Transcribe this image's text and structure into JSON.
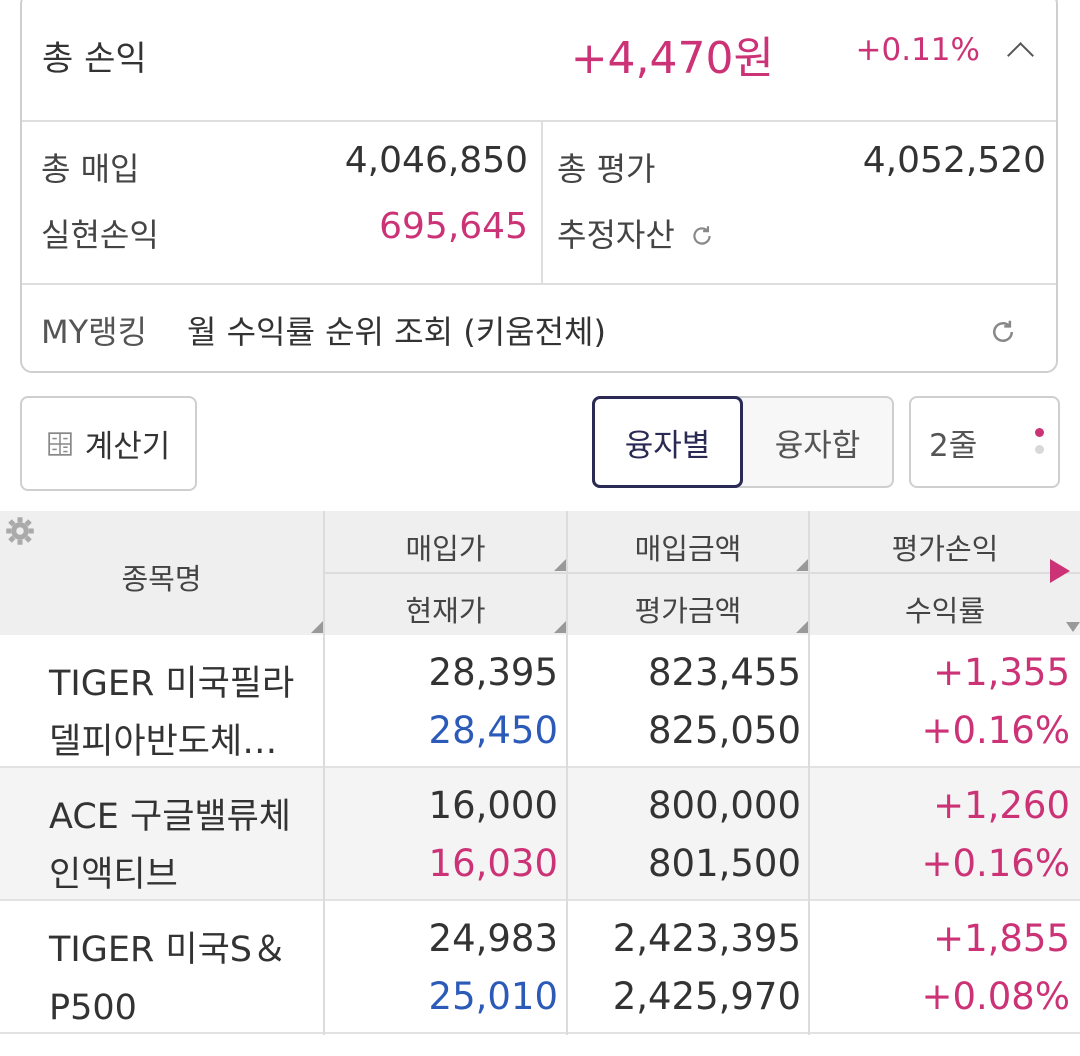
{
  "summary": {
    "title": "총 손익",
    "profit_amount": "+4,470원",
    "profit_rate": "+0.11%",
    "total_buy_label": "총 매입",
    "total_buy_value": "4,046,850",
    "total_eval_label": "총 평가",
    "total_eval_value": "4,052,520",
    "realized_label": "실현손익",
    "realized_value": "695,645",
    "est_asset_label": "추정자산",
    "ranking_label": "MY랭킹",
    "ranking_text": "월 수익률 순위 조회 (키움전체)"
  },
  "toolbar": {
    "calculator_label": "계산기",
    "tab_by_loan": "융자별",
    "tab_loan_sum": "융자합",
    "lines_label": "2줄"
  },
  "table": {
    "header_name": "종목명",
    "header_buy_price": "매입가",
    "header_cur_price": "현재가",
    "header_buy_amount": "매입금액",
    "header_eval_amount": "평가금액",
    "header_eval_pl": "평가손익",
    "header_return": "수익률",
    "rows": [
      {
        "name": "TIGER 미국필라델피아반도체…",
        "buy_price": "28,395",
        "cur_price": "28,450",
        "cur_color": "#2b5ab8",
        "buy_amount": "823,455",
        "eval_amount": "825,050",
        "pl": "+1,355",
        "rate": "+0.16%"
      },
      {
        "name": "ACE 구글밸류체인액티브",
        "buy_price": "16,000",
        "cur_price": "16,030",
        "cur_color": "#cc3377",
        "buy_amount": "800,000",
        "eval_amount": "801,500",
        "pl": "+1,260",
        "rate": "+0.16%"
      },
      {
        "name": "TIGER 미국S＆P500",
        "buy_price": "24,983",
        "cur_price": "25,010",
        "cur_color": "#2b5ab8",
        "buy_amount": "2,423,395",
        "eval_amount": "2,425,970",
        "pl": "+1,855",
        "rate": "+0.08%"
      }
    ]
  },
  "colors": {
    "profit": "#cc3377",
    "loss_or_down": "#2b5ab8",
    "accent": "#2a2a55"
  }
}
